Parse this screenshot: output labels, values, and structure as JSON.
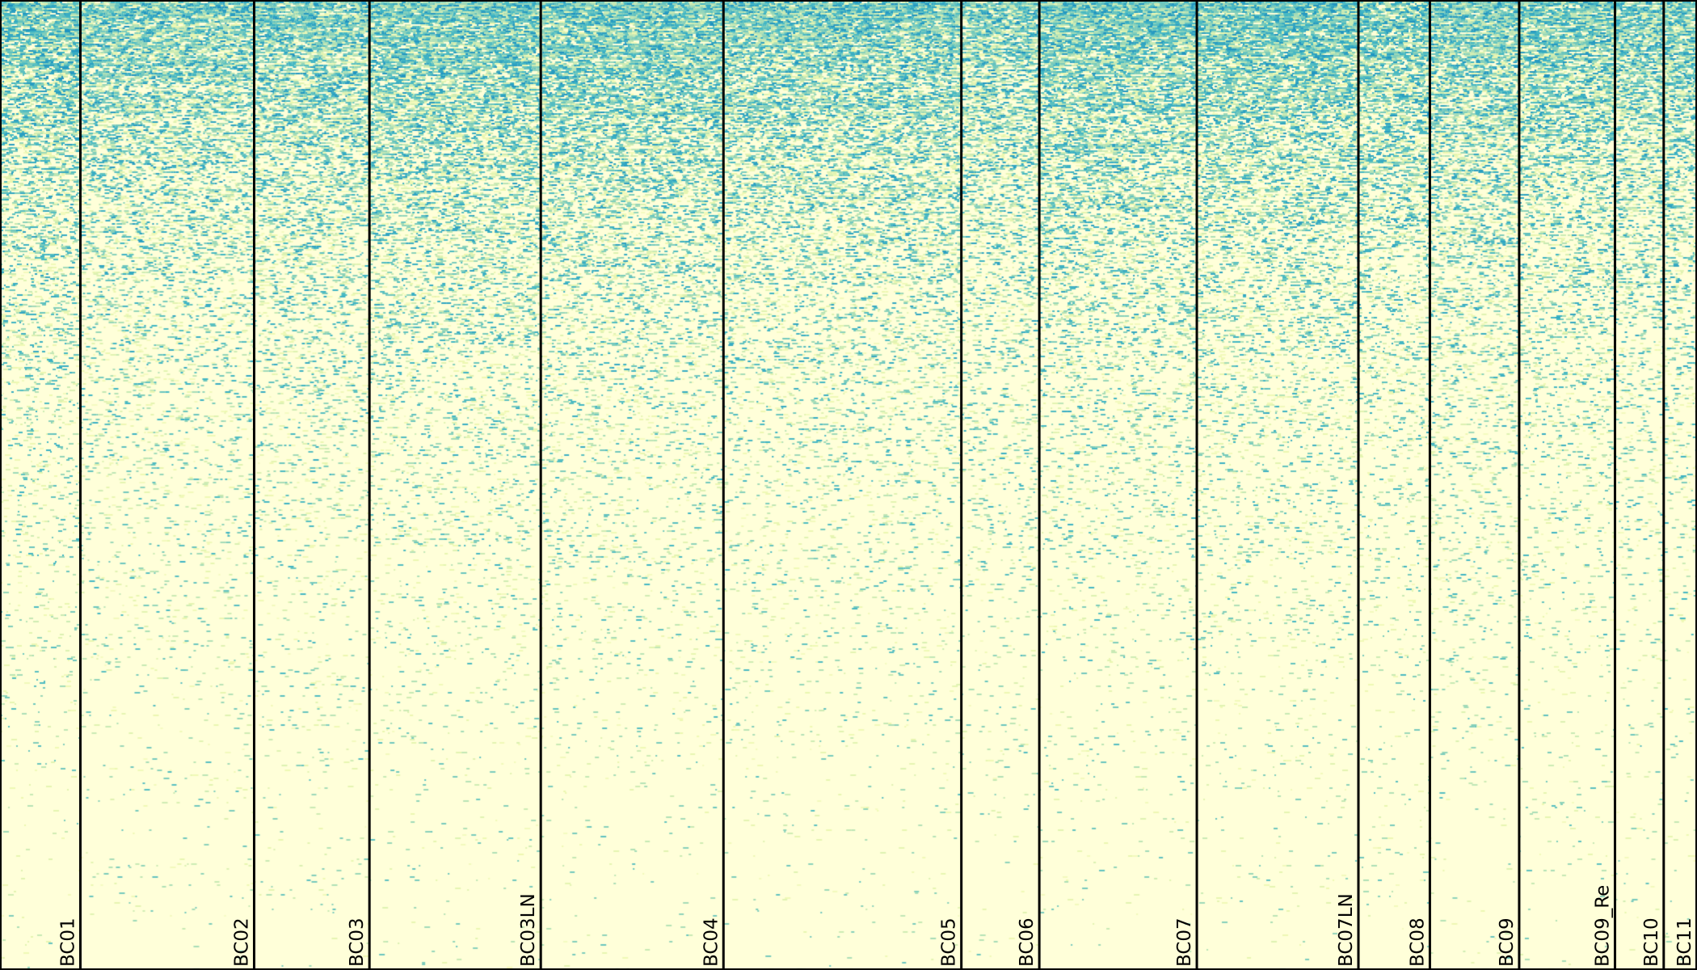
{
  "chart_data": {
    "type": "heatmap",
    "title": "",
    "xlabel": "",
    "ylabel": "",
    "colormap": [
      "#ffffd9",
      "#edf8b1",
      "#c7e9b4",
      "#7fcdbb",
      "#41b6c4",
      "#1d91c0"
    ],
    "background_color": "#ffffd9",
    "separator_color": "#000000",
    "rows_sorted_descending": true,
    "groups": [
      {
        "name": "BC01",
        "relative_cells": 99
      },
      {
        "name": "BC02",
        "relative_cells": 214
      },
      {
        "name": "BC03",
        "relative_cells": 142
      },
      {
        "name": "BC03LN",
        "relative_cells": 211
      },
      {
        "name": "BC04",
        "relative_cells": 225
      },
      {
        "name": "BC05",
        "relative_cells": 293
      },
      {
        "name": "BC06",
        "relative_cells": 96
      },
      {
        "name": "BC07",
        "relative_cells": 194
      },
      {
        "name": "BC07LN",
        "relative_cells": 199
      },
      {
        "name": "BC08",
        "relative_cells": 88
      },
      {
        "name": "BC09",
        "relative_cells": 110
      },
      {
        "name": "BC09_Re",
        "relative_cells": 118
      },
      {
        "name": "BC10",
        "relative_cells": 60
      },
      {
        "name": "BC11",
        "relative_cells": 41
      }
    ],
    "group_density": [
      0.95,
      0.85,
      0.9,
      1.0,
      1.0,
      0.95,
      0.8,
      1.0,
      1.0,
      0.9,
      0.95,
      0.9,
      0.85,
      0.9
    ]
  }
}
